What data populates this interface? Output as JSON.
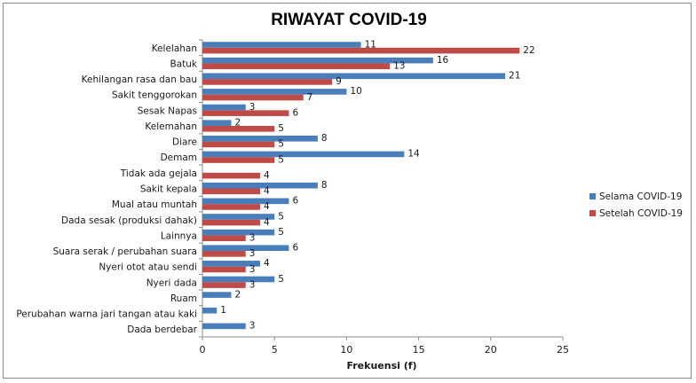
{
  "chart_data": {
    "type": "bar",
    "orientation": "horizontal",
    "title": "RIWAYAT COVID-19",
    "xlabel": "Frekuensi (f)",
    "ylabel": "",
    "xlim": [
      0,
      25
    ],
    "xticks": [
      "0",
      "5",
      "10",
      "15",
      "20",
      "25"
    ],
    "grid": false,
    "legend_position": "right",
    "categories": [
      "Kelelahan",
      "Batuk",
      "Kehilangan rasa dan bau",
      "Sakit tenggorokan",
      "Sesak Napas",
      "Kelemahan",
      "Diare",
      "Demam",
      "Tidak ada gejala",
      "Sakit kepala",
      "Mual atau muntah",
      "Dada sesak (produksi dahak)",
      "Lainnya",
      "Suara serak / perubahan suara",
      "Nyeri otot atau sendi",
      "Nyeri dada",
      "Ruam",
      "Perubahan warna jari tangan atau kaki",
      "Dada berdebar"
    ],
    "series": [
      {
        "name": "Selama COVID-19",
        "color": "#4a7ebb",
        "values": [
          11,
          16,
          21,
          10,
          3,
          2,
          8,
          14,
          null,
          8,
          6,
          5,
          5,
          6,
          4,
          5,
          2,
          1,
          3
        ]
      },
      {
        "name": "Setelah COVID-19",
        "color": "#be4b48",
        "values": [
          22,
          13,
          9,
          7,
          6,
          5,
          5,
          5,
          4,
          4,
          4,
          4,
          3,
          3,
          3,
          3,
          null,
          null,
          null
        ]
      }
    ]
  }
}
